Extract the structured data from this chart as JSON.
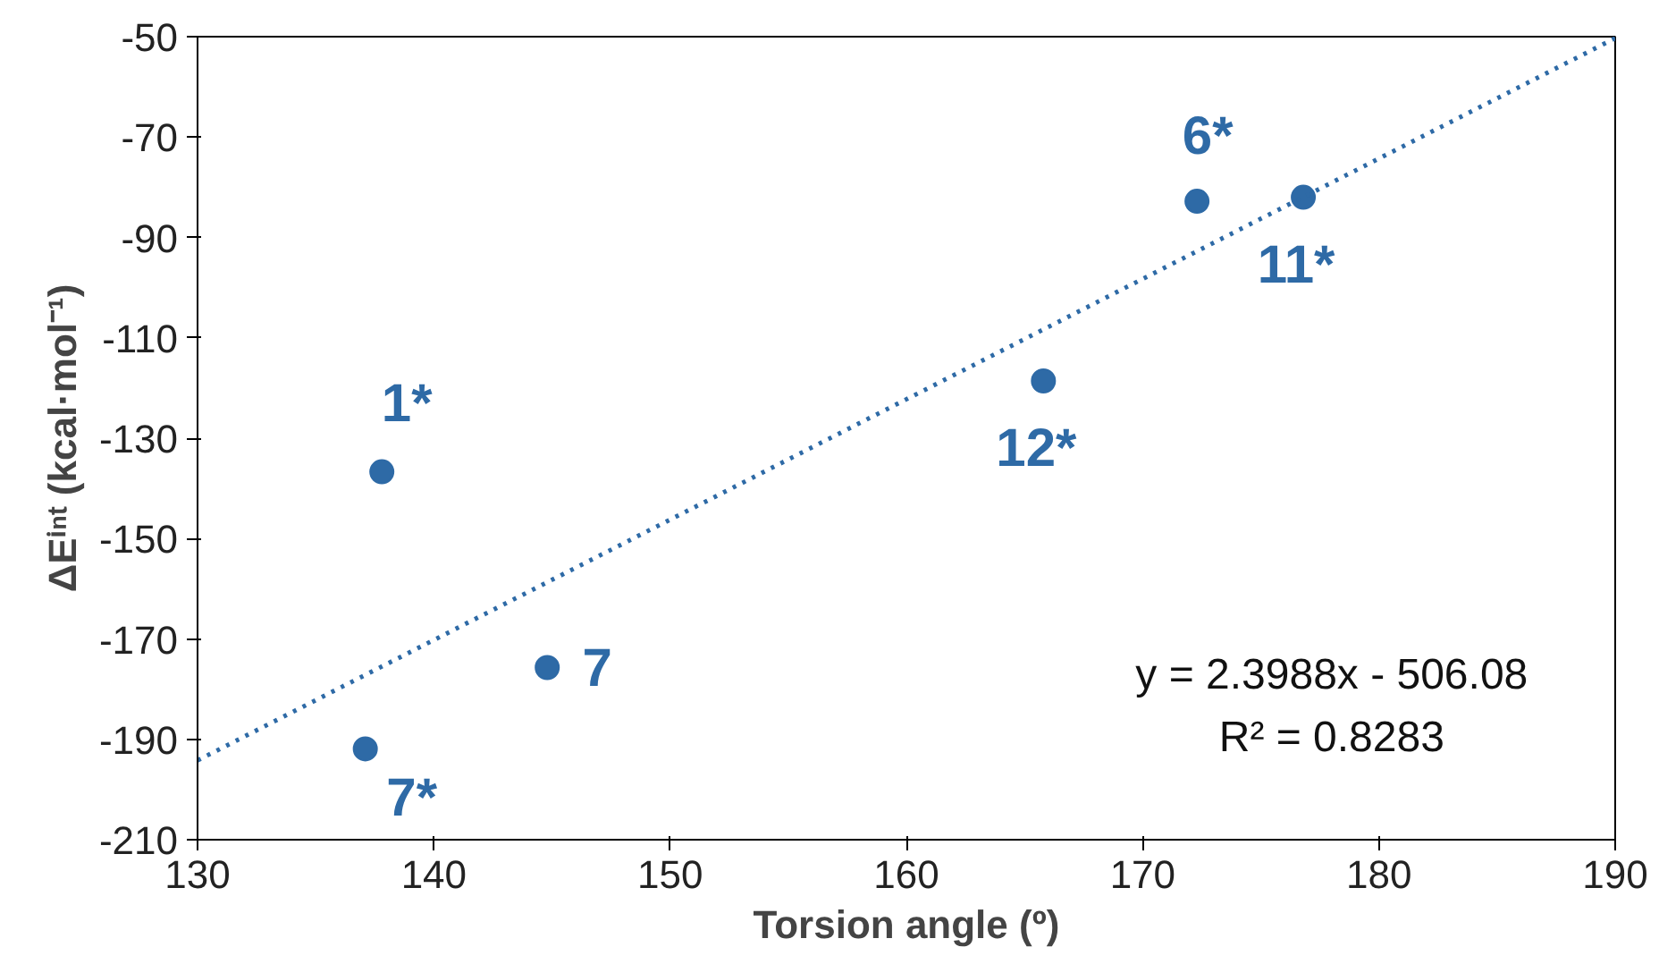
{
  "chart_data": {
    "type": "scatter",
    "xlabel": "Torsion angle (º)",
    "ylabel": "ΔEⁱⁿᵗ (kcal·mol⁻¹)",
    "xlim": [
      130,
      190
    ],
    "xticks": [
      130,
      140,
      150,
      160,
      170,
      180,
      190
    ],
    "ylim": [
      -210,
      -50
    ],
    "yticks": [
      -210,
      -190,
      -170,
      -150,
      -130,
      -110,
      -90,
      -70,
      -50
    ],
    "grid": false,
    "series": [
      {
        "marker": "circle",
        "color": "#2e6aa6",
        "x": [
          137.8,
          137.1,
          144.8,
          165.8,
          172.3,
          176.8
        ],
        "values": [
          -136.7,
          -191.9,
          -175.7,
          -118.6,
          -82.8,
          -82.0
        ]
      },
      {
        "type": "line",
        "color": "#2e6aa6",
        "line_style": "dotted",
        "x": [
          130,
          190
        ],
        "values": [
          -194.2,
          -50.3
        ]
      }
    ],
    "annotations": [
      {
        "text": "1*",
        "x": 137.8,
        "y": -136.7
      },
      {
        "text": "7*",
        "x": 137.1,
        "y": -191.9
      },
      {
        "text": "7",
        "x": 144.8,
        "y": -175.7
      },
      {
        "text": "12*",
        "x": 165.8,
        "y": -118.6
      },
      {
        "text": "6*",
        "x": 172.3,
        "y": -82.8
      },
      {
        "text": "11*",
        "x": 176.8,
        "y": -82.0
      },
      "y = 2.3988x - 506.08",
      "R² = 0.8283"
    ]
  }
}
